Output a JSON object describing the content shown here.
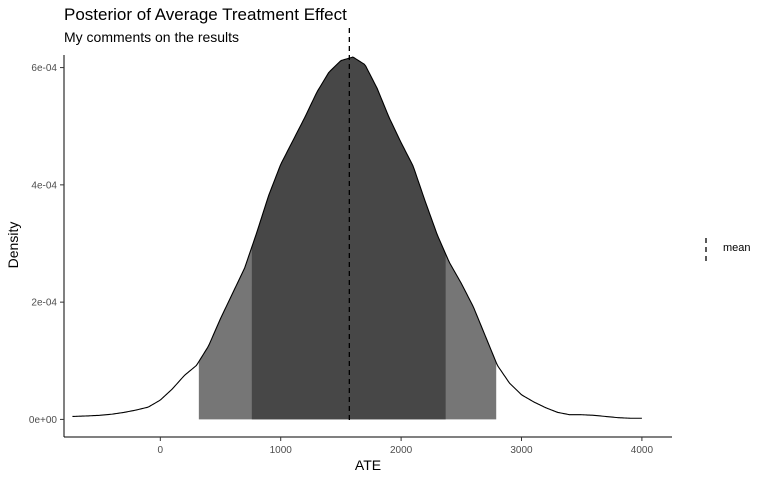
{
  "chart_data": {
    "type": "area",
    "title": "Posterior of Average Treatment Effect",
    "subtitle": "My comments on the results",
    "xlabel": "ATE",
    "ylabel": "Density",
    "xlim": [
      -800,
      4250
    ],
    "ylim": [
      -3e-05,
      0.00063
    ],
    "x_ticks": [
      0,
      1000,
      2000,
      3000,
      4000
    ],
    "x_tick_labels": [
      "0",
      "1000",
      "2000",
      "3000",
      "4000"
    ],
    "y_ticks": [
      0,
      0.0002,
      0.0004,
      0.0006
    ],
    "y_tick_labels": [
      "0e+00",
      "2e-04",
      "4e-04",
      "6e-04"
    ],
    "grid": false,
    "legend": {
      "position": "right",
      "entries": [
        "mean"
      ]
    },
    "mean": 1570,
    "intervals": {
      "outer": [
        320,
        2790
      ],
      "inner": [
        760,
        2370
      ]
    },
    "density": {
      "x": [
        -730,
        -600,
        -500,
        -400,
        -300,
        -200,
        -100,
        0,
        100,
        200,
        300,
        400,
        500,
        600,
        700,
        800,
        900,
        1000,
        1100,
        1200,
        1300,
        1400,
        1500,
        1600,
        1700,
        1800,
        1900,
        2000,
        2100,
        2200,
        2300,
        2400,
        2500,
        2600,
        2700,
        2800,
        2900,
        3000,
        3100,
        3200,
        3300,
        3400,
        3500,
        3600,
        3700,
        3800,
        3900,
        4000
      ],
      "y": [
        5e-06,
        6e-06,
        7e-06,
        9e-06,
        1.2e-05,
        1.6e-05,
        2.1e-05,
        3.3e-05,
        5.2e-05,
        7.5e-05,
        9.2e-05,
        0.000125,
        0.000172,
        0.000215,
        0.000258,
        0.000318,
        0.000382,
        0.000435,
        0.000475,
        0.000515,
        0.000558,
        0.000592,
        0.000612,
        0.000618,
        0.000605,
        0.000565,
        0.000515,
        0.000472,
        0.000432,
        0.000372,
        0.000315,
        0.000268,
        0.000232,
        0.000192,
        0.000142,
        9.2e-05,
        6.2e-05,
        4.2e-05,
        3e-05,
        2e-05,
        1.2e-05,
        8e-06,
        8e-06,
        7e-06,
        5e-06,
        3e-06,
        2e-06,
        2e-06
      ]
    },
    "colors": {
      "outer_fill": "#767676",
      "inner_fill": "#474747",
      "line": "#000000"
    }
  }
}
